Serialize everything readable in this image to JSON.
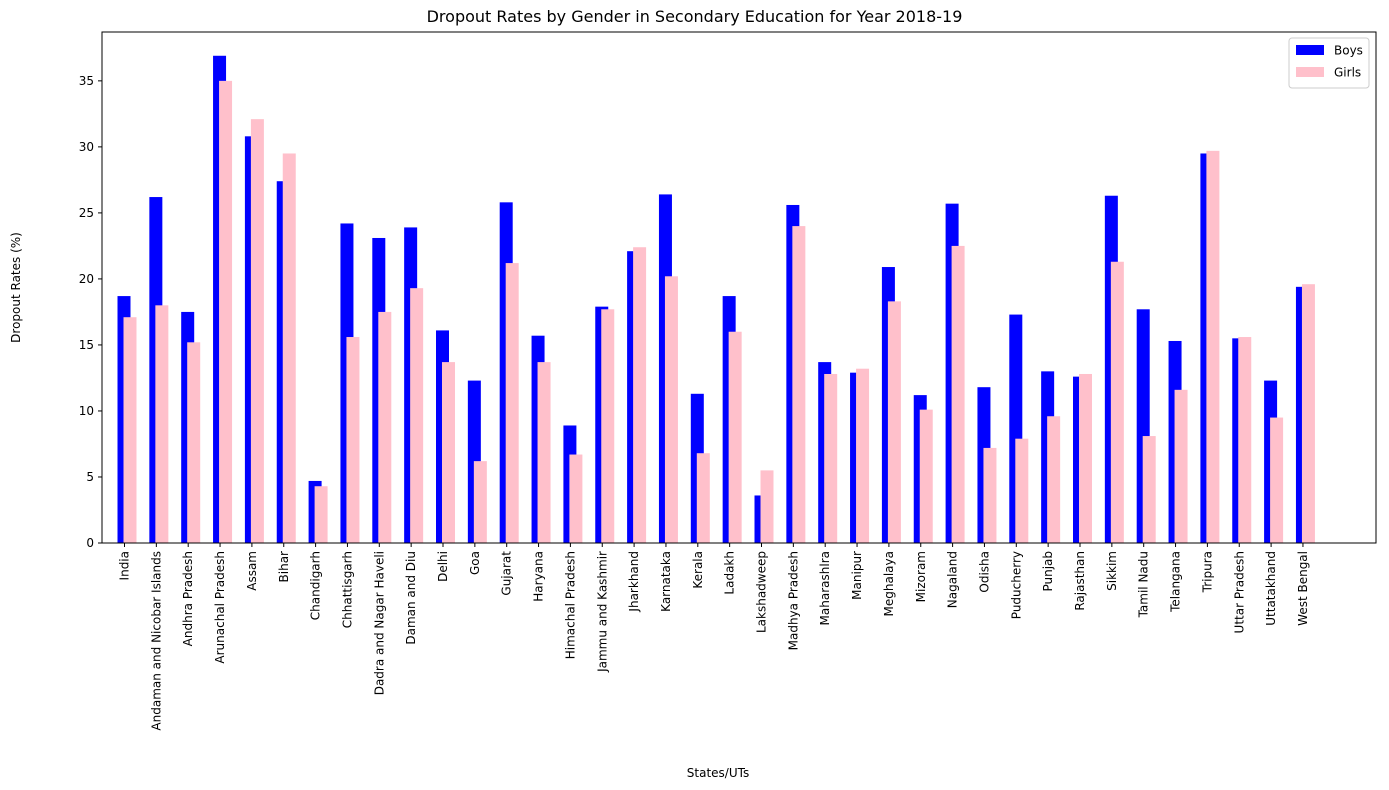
{
  "chart_data": {
    "type": "bar",
    "title": "Dropout Rates by Gender in Secondary Education for Year 2018-19",
    "xlabel": "States/UTs",
    "ylabel": "Dropout Rates (%)",
    "ylim": [
      0,
      38.7
    ],
    "yticks": [
      0,
      5,
      10,
      15,
      20,
      25,
      30,
      35
    ],
    "grid": false,
    "legend_position": "top-right",
    "categories": [
      "India",
      "Andaman and Nicobar Islands",
      "Andhra Pradesh",
      "Arunachal Pradesh",
      "Assam",
      "Bihar",
      "Chandigarh",
      "Chhattisgarh",
      "Dadra and Nagar Haveli",
      "Daman and Diu",
      "Delhi",
      "Goa",
      "Gujarat",
      "Haryana",
      "Himachal Pradesh",
      "Jammu and Kashmir",
      "Jharkhand",
      "Karnataka",
      "Kerala",
      "Ladakh",
      "Lakshadweep",
      "Madhya Pradesh",
      "Maharashlra",
      "Manipur",
      "Meghalaya",
      "Mizoram",
      "Nagaland",
      "Odisha",
      "Puducherry",
      "Punjab",
      "Rajasthan",
      "Sikkim",
      "Tamil Nadu",
      "Telangana",
      "Tripura",
      "Uttar Pradesh",
      "Uttatakhand",
      "West Bengal"
    ],
    "series": [
      {
        "name": "Boys",
        "color": "#0000ff",
        "values": [
          18.7,
          26.2,
          17.5,
          36.9,
          30.8,
          27.4,
          4.7,
          24.2,
          23.1,
          23.9,
          16.1,
          12.3,
          25.8,
          15.7,
          8.9,
          17.9,
          22.1,
          26.4,
          11.3,
          18.7,
          3.6,
          25.6,
          13.7,
          12.9,
          20.9,
          11.2,
          25.7,
          11.8,
          17.3,
          13.0,
          12.6,
          26.3,
          17.7,
          15.3,
          29.5,
          15.5,
          12.3,
          19.4
        ]
      },
      {
        "name": "Girls",
        "color": "#ffc0cb",
        "values": [
          17.1,
          18.0,
          15.2,
          35.0,
          32.1,
          29.5,
          4.3,
          15.6,
          17.5,
          19.3,
          13.7,
          6.2,
          21.2,
          13.7,
          6.7,
          17.7,
          22.4,
          20.2,
          6.8,
          16.0,
          5.5,
          24.0,
          12.8,
          13.2,
          18.3,
          10.1,
          22.5,
          7.2,
          7.9,
          9.6,
          12.8,
          21.3,
          8.1,
          11.6,
          29.7,
          15.6,
          9.5,
          19.6
        ]
      }
    ]
  }
}
